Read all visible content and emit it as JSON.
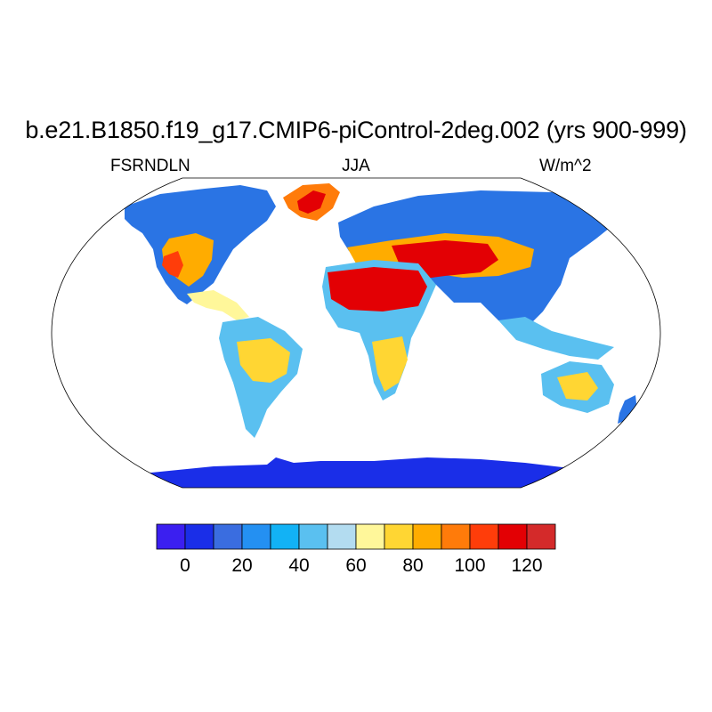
{
  "title": "b.e21.B1850.f19_g17.CMIP6-piControl-2deg.002 (yrs 900-999)",
  "left_label": "FSRNDLN",
  "center_label": "JJA",
  "right_label": "W/m^2",
  "chart_data": {
    "type": "map",
    "projection": "Robinson",
    "variable": "FSRNDLN",
    "season": "JJA",
    "units": "W/m^2",
    "colorbar": {
      "boundaries": [
        -10,
        0,
        10,
        20,
        30,
        40,
        50,
        60,
        70,
        80,
        90,
        100,
        110,
        120,
        130
      ],
      "colors": [
        "#3b1ff0",
        "#1a2ee8",
        "#3a6de0",
        "#2490f2",
        "#12b2f5",
        "#5ac0f0",
        "#b3dcf0",
        "#fff79a",
        "#ffd633",
        "#ffac00",
        "#ff7b0a",
        "#ff3d0a",
        "#e30004",
        "#d42a2a"
      ],
      "tick_labels": [
        "0",
        "20",
        "40",
        "60",
        "80",
        "100",
        "120"
      ],
      "tick_values": [
        0,
        20,
        40,
        60,
        80,
        100,
        120
      ]
    }
  }
}
